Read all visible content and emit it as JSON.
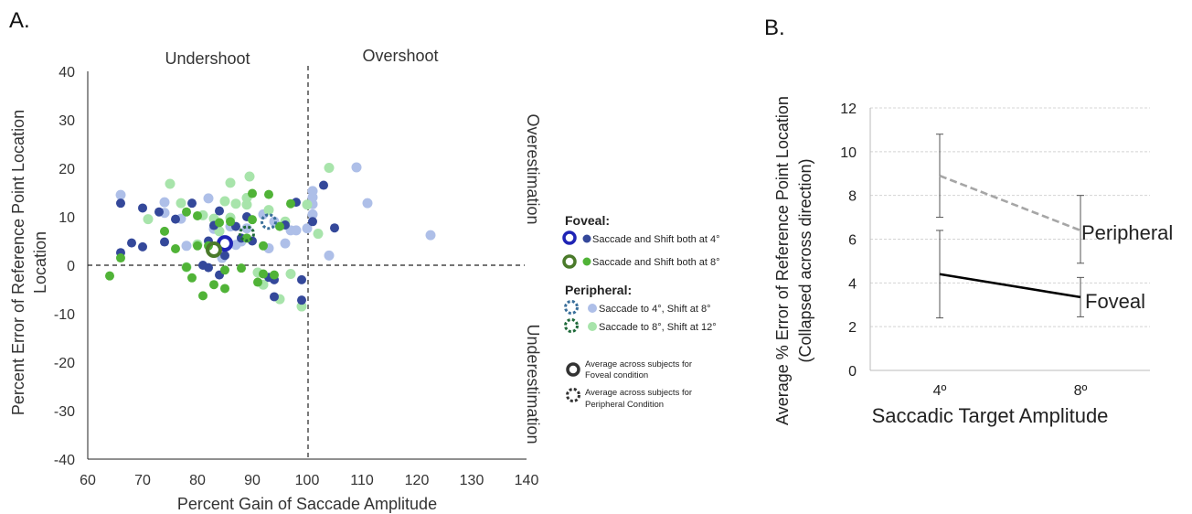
{
  "panel_a": {
    "label": "A.",
    "region_labels": {
      "undershoot": "Undershoot",
      "overshoot": "Overshoot",
      "overestimation": "Overestimation",
      "underestimation": "Underestimation"
    },
    "legend": {
      "foveal_header": "Foveal:",
      "foveal_4": "Saccade and Shift both at 4°",
      "foveal_8": "Saccade and Shift both at 8°",
      "peripheral_header": "Peripheral:",
      "peripheral_4": "Saccade to 4°, Shift at 8°",
      "peripheral_8": "Saccade to 8°, Shift at 12°",
      "avg_foveal_1": "Average across subjects for",
      "avg_foveal_2": "Foveal condition",
      "avg_peripheral_1": "Average across subjects for",
      "avg_peripheral_2": "Peripheral Condition"
    }
  },
  "panel_b": {
    "label": "B.",
    "line_labels": {
      "peripheral": "Peripheral",
      "foveal": "Foveal"
    }
  },
  "chart_data": [
    {
      "type": "scatter",
      "xlabel": "Percent Gain of Saccade Amplitude",
      "ylabel": "Percent Error of Reference Point Location",
      "xlim": [
        60,
        140
      ],
      "ylim": [
        -40,
        40
      ],
      "xticks": [
        "60",
        "70",
        "80",
        "90",
        "100",
        "110",
        "120",
        "130",
        "140"
      ],
      "yticks": [
        "-40",
        "-30",
        "-20",
        "-10",
        "0",
        "10",
        "20",
        "30",
        "40"
      ],
      "reference_lines": {
        "x": 100,
        "y": 0
      },
      "colors": {
        "foveal_4": "#34489a",
        "foveal_8": "#50b337",
        "peripheral_4": "#aebfe8",
        "peripheral_8": "#a8e4ab",
        "avg_foveal_4": "#1f24b5",
        "avg_foveal_8": "#4a7a2a",
        "avg_peripheral_4": "#3a6f9a",
        "avg_peripheral_8": "#1f6a3a"
      },
      "series": [
        {
          "key": "foveal_4",
          "points": [
            [
              66,
              12.8
            ],
            [
              68,
              4.6
            ],
            [
              70,
              11.8
            ],
            [
              70,
              3.8
            ],
            [
              73,
              11
            ],
            [
              76,
              9.5
            ],
            [
              79,
              12.8
            ],
            [
              82,
              5
            ],
            [
              83,
              8.2
            ],
            [
              84,
              11.2
            ],
            [
              85,
              2
            ],
            [
              82,
              -0.5
            ],
            [
              84,
              -2
            ],
            [
              87,
              8
            ],
            [
              88,
              5.6
            ],
            [
              89,
              10
            ],
            [
              90,
              5
            ],
            [
              93,
              -2.5
            ],
            [
              94,
              -3
            ],
            [
              94,
              -6.5
            ],
            [
              96,
              8.3
            ],
            [
              98,
              13
            ],
            [
              99,
              -3
            ],
            [
              99,
              -7.2
            ],
            [
              101,
              9
            ],
            [
              103,
              16.5
            ],
            [
              105,
              7.7
            ],
            [
              66,
              2.6
            ],
            [
              74,
              4.8
            ],
            [
              81,
              0
            ]
          ]
        },
        {
          "key": "foveal_8",
          "points": [
            [
              64,
              -2.2
            ],
            [
              66,
              1.5
            ],
            [
              74,
              7
            ],
            [
              76,
              3.4
            ],
            [
              78,
              -0.4
            ],
            [
              79,
              -2.6
            ],
            [
              80,
              10.2
            ],
            [
              80,
              4
            ],
            [
              81,
              -6.3
            ],
            [
              82,
              4
            ],
            [
              83,
              -4
            ],
            [
              84,
              8.8
            ],
            [
              85,
              -1
            ],
            [
              85,
              -4.8
            ],
            [
              86,
              9
            ],
            [
              88,
              -0.6
            ],
            [
              89,
              5.6
            ],
            [
              90,
              9.4
            ],
            [
              90,
              14.8
            ],
            [
              91,
              -3.5
            ],
            [
              92,
              -1.8
            ],
            [
              92,
              4
            ],
            [
              93,
              14.6
            ],
            [
              94,
              -2
            ],
            [
              95,
              8
            ],
            [
              97,
              12.7
            ],
            [
              78,
              11
            ]
          ]
        },
        {
          "key": "peripheral_4",
          "points": [
            [
              66,
              14.5
            ],
            [
              74,
              13
            ],
            [
              74,
              10.8
            ],
            [
              77,
              9.6
            ],
            [
              78,
              4
            ],
            [
              82,
              13.8
            ],
            [
              83,
              7.5
            ],
            [
              86,
              8
            ],
            [
              87,
              4.2
            ],
            [
              88,
              4.9
            ],
            [
              89,
              7.6
            ],
            [
              92,
              10.5
            ],
            [
              93,
              3.5
            ],
            [
              94,
              9
            ],
            [
              96,
              4.5
            ],
            [
              97,
              7.2
            ],
            [
              98,
              7.2
            ],
            [
              100,
              7.6
            ],
            [
              101,
              15.3
            ],
            [
              101,
              14
            ],
            [
              101,
              12.6
            ],
            [
              101,
              10.5
            ],
            [
              104,
              2
            ],
            [
              109,
              20.2
            ],
            [
              111,
              12.8
            ],
            [
              122.5,
              6.2
            ],
            [
              84.5,
              1.5
            ]
          ]
        },
        {
          "key": "peripheral_8",
          "points": [
            [
              71,
              9.5
            ],
            [
              75,
              16.8
            ],
            [
              77,
              12.8
            ],
            [
              78,
              -0.4
            ],
            [
              80,
              4.3
            ],
            [
              81,
              10.3
            ],
            [
              83,
              9.6
            ],
            [
              84,
              7
            ],
            [
              85,
              13.2
            ],
            [
              86,
              17
            ],
            [
              86,
              9.8
            ],
            [
              87,
              12.7
            ],
            [
              89,
              12.5
            ],
            [
              89.5,
              18.3
            ],
            [
              89,
              13.9
            ],
            [
              91,
              -1.5
            ],
            [
              92,
              -4
            ],
            [
              93,
              11.4
            ],
            [
              95,
              -7
            ],
            [
              96,
              9
            ],
            [
              97,
              -1.8
            ],
            [
              99,
              -8.5
            ],
            [
              100,
              12.5
            ],
            [
              102,
              6.5
            ],
            [
              104,
              20.1
            ]
          ]
        },
        {
          "key": "avg_foveal_4",
          "points": [
            [
              85,
              4.5
            ]
          ]
        },
        {
          "key": "avg_foveal_8",
          "points": [
            [
              83,
              3.2
            ]
          ]
        },
        {
          "key": "avg_peripheral_4",
          "points": [
            [
              93,
              9
            ]
          ]
        },
        {
          "key": "avg_peripheral_8",
          "points": [
            [
              89,
              6.5
            ]
          ]
        }
      ]
    },
    {
      "type": "line",
      "xlabel": "Saccadic Target Amplitude",
      "ylabel": "Average % Error of Reference Point Location",
      "ylabel2": "(Collapsed across direction)",
      "categories": [
        "4º",
        "8º"
      ],
      "ylim": [
        0,
        12
      ],
      "yticks": [
        "0",
        "2",
        "4",
        "6",
        "8",
        "10",
        "12"
      ],
      "grid": true,
      "series": [
        {
          "name": "Peripheral",
          "values": [
            8.9,
            6.4
          ],
          "err_low": [
            7.0,
            4.9
          ],
          "err_high": [
            10.8,
            8.0
          ],
          "color": "#a6a6a6",
          "dash": true
        },
        {
          "name": "Foveal",
          "values": [
            4.4,
            3.35
          ],
          "err_low": [
            2.4,
            2.45
          ],
          "err_high": [
            6.4,
            4.25
          ],
          "color": "#000000",
          "dash": false
        }
      ]
    }
  ]
}
